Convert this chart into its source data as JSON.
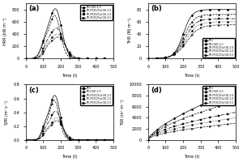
{
  "figure_bg": "#ffffff",
  "panels": [
    "a",
    "b",
    "c",
    "d"
  ],
  "labels": {
    "a": {
      "ylabel": "HRR (kW m⁻²)",
      "xlabel": "Time (t)",
      "ylim": [
        0,
        900
      ],
      "yticks": [
        0,
        200,
        400,
        600,
        800
      ]
    },
    "b": {
      "ylabel": "THR (MJ m⁻²)",
      "xlabel": "Time (t)",
      "ylim": [
        0,
        90
      ],
      "yticks": [
        0,
        20,
        40,
        60,
        80
      ]
    },
    "c": {
      "ylabel": "SPR (m² s⁻¹)",
      "xlabel": "Time (t)",
      "ylim": [
        0,
        0.8
      ],
      "yticks": [
        0.0,
        0.2,
        0.4,
        0.6,
        0.8
      ]
    },
    "d": {
      "ylabel": "TSR (m² m⁻²)",
      "xlabel": "Time (t)",
      "ylim": [
        0,
        10000
      ],
      "yticks": [
        0,
        2000,
        4000,
        6000,
        8000,
        10000
      ]
    }
  },
  "xlim": [
    0,
    500
  ],
  "xticks": [
    0,
    100,
    200,
    300,
    400,
    500
  ],
  "legend_a": [
    "TPU/rGO-2.0",
    "TPU/Ti3C2Tx/rGO-2.0",
    "TPU/Ti3C2Tx/rGO-1.0",
    "TPU/Ti3C2Tx/rGO-0.5"
  ],
  "legend_bcd": [
    "TPU",
    "TPU/rGO-2.0",
    "TPU/Ti3C2Tx/rGO-2.0",
    "TPU/Ti3C2Tx/rGO-1.0",
    "TPU/Ti3C2Tx/rGO-0.5"
  ],
  "panel_labels": [
    "(a)",
    "(b)",
    "(c)",
    "(d)"
  ],
  "panel_keys": [
    "a",
    "b",
    "c",
    "d"
  ]
}
